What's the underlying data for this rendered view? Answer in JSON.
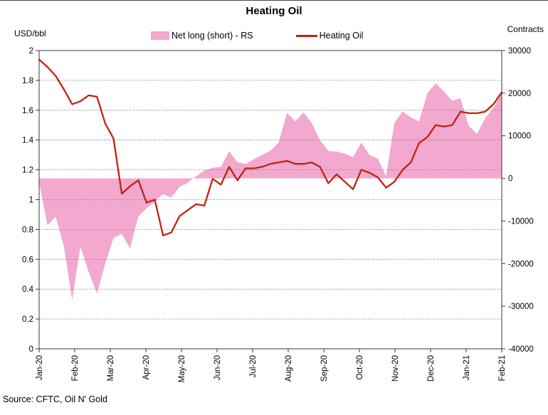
{
  "chart_data": {
    "type": "area",
    "title": "Heating Oil",
    "source": "Source: CFTC, Oil N' Gold",
    "legend_position": "top",
    "grid": true,
    "x_tick_labels": [
      "Jan-20",
      "Feb-20",
      "Mar-20",
      "Apr-20",
      "May-20",
      "Jun-20",
      "Jul-20",
      "Aug-20",
      "Sep-20",
      "Oct-20",
      "Nov-20",
      "Dec-20",
      "Jan-21",
      "Feb-21"
    ],
    "left_axis": {
      "label": "USD/bbl",
      "min": 0,
      "max": 2,
      "step": 0.2,
      "ticks": [
        "2",
        "1.8",
        "1.6",
        "1.4",
        "1.2",
        "1",
        "0.8",
        "0.6",
        "0.4",
        "0.2",
        "0"
      ]
    },
    "right_axis": {
      "label": "Contracts",
      "min": -40000,
      "max": 30000,
      "step": 10000,
      "ticks": [
        "30000",
        "20000",
        "10000",
        "0",
        "-10000",
        "-20000",
        "-30000",
        "-40000"
      ]
    },
    "series": [
      {
        "name": "Net long  (short) - RS",
        "type": "area",
        "axis": "right",
        "color": "#ef87c0",
        "color_light": "#f5c9de",
        "values": [
          -1000,
          -11000,
          -9000,
          -16000,
          -28500,
          -16000,
          -22000,
          -27000,
          -20000,
          -14000,
          -13000,
          -16500,
          -9000,
          -7000,
          -5500,
          -3700,
          -4500,
          -2000,
          -1000,
          500,
          1800,
          2500,
          2700,
          6400,
          3800,
          3400,
          4500,
          5500,
          6500,
          8400,
          15400,
          13400,
          15500,
          13000,
          9000,
          6400,
          6300,
          5800,
          5000,
          8400,
          5500,
          4600,
          500,
          13000,
          15700,
          14300,
          13400,
          20000,
          22300,
          20400,
          18200,
          18800,
          12300,
          10400,
          14200,
          16500,
          20100
        ]
      },
      {
        "name": "Heating Oil",
        "type": "line",
        "axis": "left",
        "color": "#c2220e",
        "values": [
          1.94,
          1.89,
          1.83,
          1.74,
          1.64,
          1.66,
          1.7,
          1.69,
          1.51,
          1.41,
          1.04,
          1.09,
          1.13,
          0.98,
          1.0,
          0.76,
          0.78,
          0.89,
          0.93,
          0.97,
          0.96,
          1.14,
          1.1,
          1.22,
          1.13,
          1.21,
          1.21,
          1.22,
          1.24,
          1.25,
          1.26,
          1.24,
          1.24,
          1.25,
          1.22,
          1.11,
          1.17,
          1.12,
          1.07,
          1.2,
          1.18,
          1.15,
          1.08,
          1.12,
          1.2,
          1.25,
          1.38,
          1.42,
          1.5,
          1.49,
          1.5,
          1.59,
          1.58,
          1.58,
          1.59,
          1.64,
          1.72
        ]
      }
    ],
    "style": {
      "grid_color": "#90907e",
      "axis_color": "#3a3a3a"
    }
  }
}
